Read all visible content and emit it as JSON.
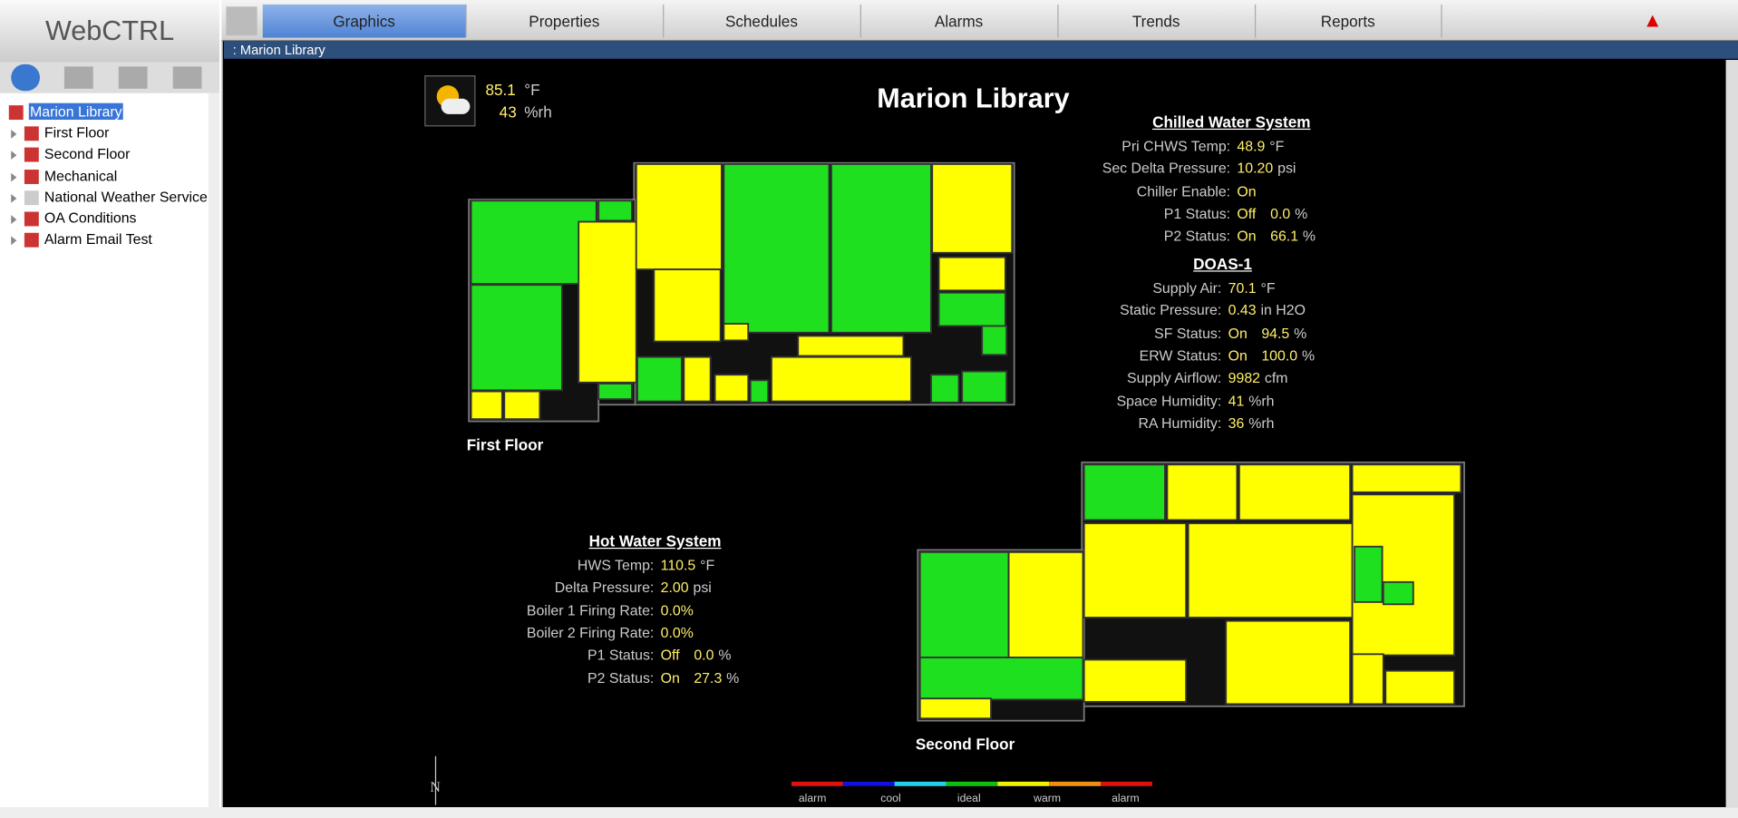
{
  "logo": "WebCTRL",
  "nav": [
    "Graphics",
    "Properties",
    "Schedules",
    "Alarms",
    "Trends",
    "Reports"
  ],
  "breadcrumb": ": Marion Library",
  "tree": [
    "Marion Library",
    "First Floor",
    "Second Floor",
    "Mechanical",
    "National Weather Service",
    "OA Conditions",
    "Alarm Email Test"
  ],
  "weather": {
    "temp": "85.1",
    "temp_unit": "°F",
    "humidity": "43",
    "humidity_unit": "%rh"
  },
  "title": "Marion Library",
  "panels": [
    {
      "title": "Chilled Water System",
      "rows": [
        {
          "label": "Pri CHWS Temp:",
          "values": [
            "48.9"
          ],
          "unit": "°F"
        },
        {
          "label": "Sec Delta Pressure:",
          "values": [
            "10.20"
          ],
          "unit": "psi"
        },
        {
          "label": "Chiller Enable:",
          "values": [
            "On"
          ]
        },
        {
          "label": "P1 Status:",
          "values": [
            "Off",
            "0.0"
          ],
          "unit": "%"
        },
        {
          "label": "P2 Status:",
          "values": [
            "On",
            "66.1"
          ],
          "unit": "%"
        }
      ]
    },
    {
      "title": "DOAS-1",
      "rows": [
        {
          "label": "Supply Air:",
          "values": [
            "70.1"
          ],
          "unit": "°F"
        },
        {
          "label": "Static Pressure:",
          "values": [
            "0.43"
          ],
          "unit": "in H2O"
        },
        {
          "label": "SF Status:",
          "values": [
            "On",
            "94.5"
          ],
          "unit": "%"
        },
        {
          "label": "ERW Status:",
          "values": [
            "On",
            "100.0"
          ],
          "unit": "%"
        },
        {
          "label": "Supply Airflow:",
          "values": [
            "9982"
          ],
          "unit": "cfm"
        },
        {
          "label": "Space Humidity:",
          "values": [
            "41"
          ],
          "unit": "%rh"
        },
        {
          "label": "RA Humidity:",
          "values": [
            "36"
          ],
          "unit": "%rh"
        }
      ]
    },
    {
      "title": "Hot Water System",
      "rows": [
        {
          "label": "HWS Temp:",
          "values": [
            "110.5"
          ],
          "unit": "°F"
        },
        {
          "label": "Delta Pressure:",
          "values": [
            "2.00"
          ],
          "unit": "psi"
        },
        {
          "label": "Boiler 1 Firing Rate:",
          "values": [
            "0.0%"
          ]
        },
        {
          "label": "Boiler 2 Firing Rate:",
          "values": [
            "0.0%"
          ]
        },
        {
          "label": "P1 Status:",
          "values": [
            "Off",
            "0.0"
          ],
          "unit": "%"
        },
        {
          "label": "P2 Status:",
          "values": [
            "On",
            "27.3"
          ],
          "unit": "%"
        }
      ]
    }
  ],
  "floors": [
    "First Floor",
    "Second Floor"
  ],
  "north": "N",
  "legend": [
    "alarm",
    "cool",
    "ideal",
    "warm",
    "alarm"
  ]
}
